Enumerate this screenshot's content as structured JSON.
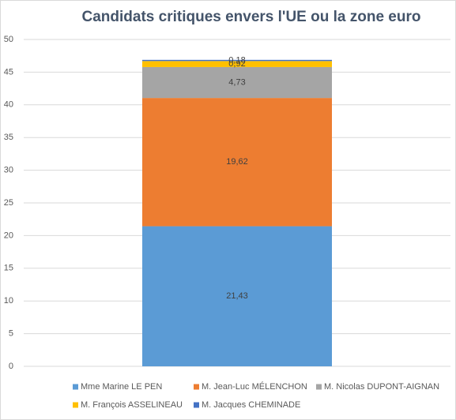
{
  "chart_data": {
    "type": "stacked-bar",
    "title": "Candidats critiques envers l'UE ou la zone euro",
    "categories": [
      null
    ],
    "series": [
      {
        "name": "Mme Marine LE PEN",
        "color": "#5b9bd5",
        "values": [
          21.43
        ],
        "value_labels": [
          "21,43"
        ]
      },
      {
        "name": "M. Jean-Luc MÉLENCHON",
        "color": "#ed7d31",
        "values": [
          19.62
        ],
        "value_labels": [
          "19,62"
        ]
      },
      {
        "name": "M. Nicolas DUPONT-AIGNAN",
        "color": "#a5a5a5",
        "values": [
          4.73
        ],
        "value_labels": [
          "4,73"
        ]
      },
      {
        "name": "M. François ASSELINEAU",
        "color": "#ffc000",
        "values": [
          0.92
        ],
        "value_labels": [
          "0,92"
        ]
      },
      {
        "name": "M. Jacques CHEMINADE",
        "color": "#4472c4",
        "values": [
          0.18
        ],
        "value_labels": [
          "0,18"
        ]
      }
    ],
    "ylim": [
      0,
      50
    ],
    "yticks": [
      0,
      5,
      10,
      15,
      20,
      25,
      30,
      35,
      40,
      45,
      50
    ],
    "grid": true,
    "legend": "bottom"
  }
}
